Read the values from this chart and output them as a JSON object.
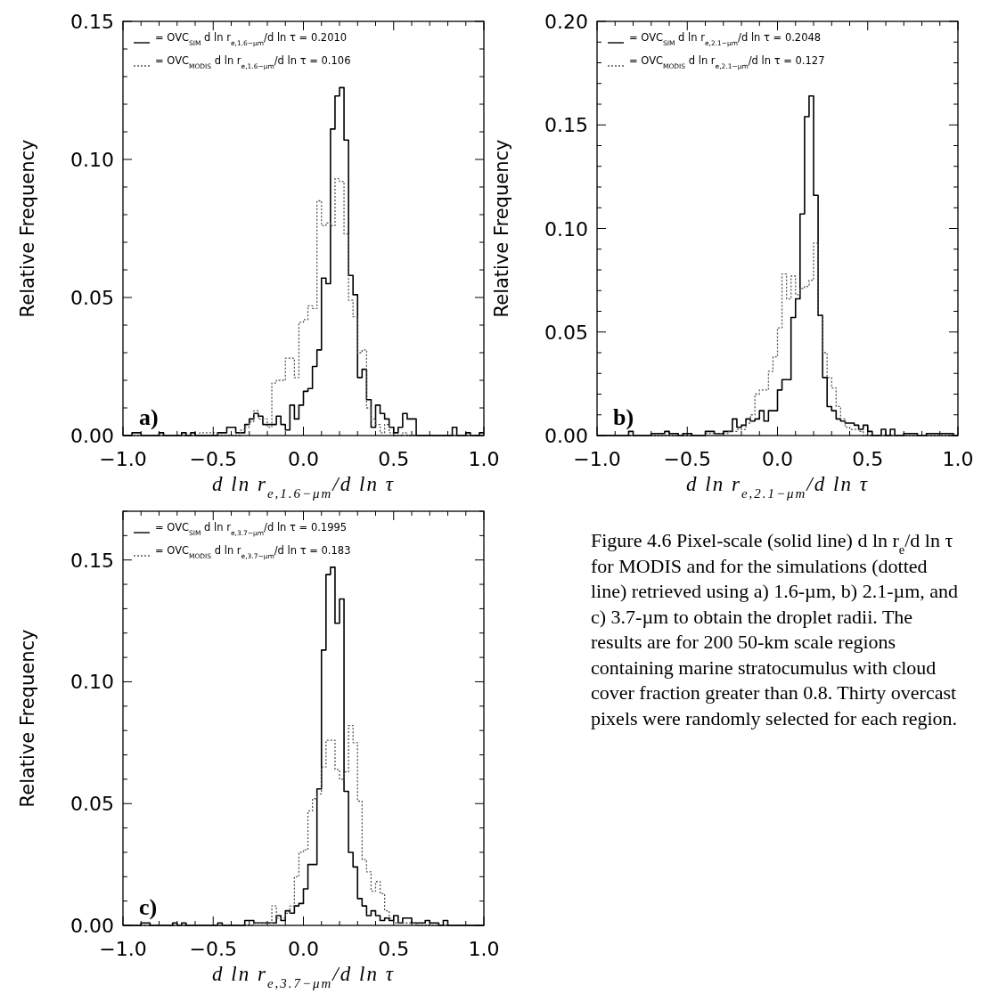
{
  "chart_data": [
    {
      "type": "histogram",
      "xlabel": "d ln r$_{e,1.6−μm}$/d ln τ",
      "ylabel": "Relative Frequency",
      "legend": "top left",
      "annotations": [
        "a)"
      ],
      "bins": [
        -1,
        -0.975,
        -0.95,
        -0.925,
        -0.9,
        -0.875,
        -0.85,
        -0.825,
        -0.8,
        -0.775,
        -0.75,
        -0.725,
        -0.7,
        -0.675,
        -0.65,
        -0.625,
        -0.6,
        -0.575,
        -0.55,
        -0.525,
        -0.5,
        -0.475,
        -0.45,
        -0.425,
        -0.4,
        -0.375,
        -0.35,
        -0.325,
        -0.3,
        -0.275,
        -0.25,
        -0.225,
        -0.2,
        -0.175,
        -0.15,
        -0.125,
        -0.1,
        -0.075,
        -0.05,
        -0.025,
        0,
        0.025,
        0.05,
        0.075,
        0.1,
        0.125,
        0.15,
        0.175,
        0.2,
        0.225,
        0.25,
        0.275,
        0.3,
        0.325,
        0.35,
        0.375,
        0.4,
        0.425,
        0.45,
        0.475,
        0.5,
        0.525,
        0.55,
        0.575,
        0.6,
        0.625,
        0.65,
        0.675,
        0.7,
        0.725,
        0.75,
        0.775,
        0.8,
        0.825,
        0.85,
        0.875,
        0.9,
        0.925,
        0.95,
        0.975,
        1
      ],
      "xlim": [
        -1,
        1
      ],
      "ylim": [
        0,
        0.15
      ],
      "xticks": [
        {
          "value": -1,
          "label": "−1.0"
        },
        {
          "value": -0.9,
          "label": null
        },
        {
          "value": -0.8,
          "label": null
        },
        {
          "value": -0.7,
          "label": null
        },
        {
          "value": -0.6,
          "label": null
        },
        {
          "value": -0.5,
          "label": "−0.5"
        },
        {
          "value": -0.4,
          "label": null
        },
        {
          "value": -0.3,
          "label": null
        },
        {
          "value": -0.2,
          "label": null
        },
        {
          "value": -0.1,
          "label": null
        },
        {
          "value": 0,
          "label": "0.0"
        },
        {
          "value": 0.1,
          "label": null
        },
        {
          "value": 0.2,
          "label": null
        },
        {
          "value": 0.3,
          "label": null
        },
        {
          "value": 0.4,
          "label": null
        },
        {
          "value": 0.5,
          "label": "0.5"
        },
        {
          "value": 0.6,
          "label": null
        },
        {
          "value": 0.7,
          "label": null
        },
        {
          "value": 0.8,
          "label": null
        },
        {
          "value": 0.9,
          "label": null
        },
        {
          "value": 1,
          "label": "1.0"
        }
      ],
      "yticks": [
        {
          "value": 0,
          "label": "0.00"
        },
        {
          "value": 0.01,
          "label": null
        },
        {
          "value": 0.02,
          "label": null
        },
        {
          "value": 0.03,
          "label": null
        },
        {
          "value": 0.04,
          "label": null
        },
        {
          "value": 0.05,
          "label": "0.05"
        },
        {
          "value": 0.06,
          "label": null
        },
        {
          "value": 0.07,
          "label": null
        },
        {
          "value": 0.08,
          "label": null
        },
        {
          "value": 0.09,
          "label": null
        },
        {
          "value": 0.1,
          "label": "0.10"
        },
        {
          "value": 0.11,
          "label": null
        },
        {
          "value": 0.12,
          "label": null
        },
        {
          "value": 0.13,
          "label": null
        },
        {
          "value": 0.14,
          "label": null
        },
        {
          "value": 0.15,
          "label": "0.15"
        }
      ],
      "series": [
        {
          "name": "= OVC$_{SIM}$ d ln r$_{e,1.6−μm}$/d ln τ = 0.2010",
          "color": "#000000",
          "line_style": "solid",
          "values": [
            0,
            0,
            0.001,
            0.001,
            0,
            0,
            0,
            0,
            0.001,
            0,
            0,
            0,
            0,
            0.001,
            0,
            0.001,
            0,
            0,
            0,
            0,
            0,
            0.001,
            0.001,
            0.003,
            0.003,
            0.001,
            0.001,
            0.004,
            0.006,
            0.008,
            0.007,
            0.004,
            0.004,
            0.004,
            0.007,
            0.004,
            0.002,
            0.011,
            0.006,
            0.011,
            0.016,
            0.017,
            0.025,
            0.031,
            0.057,
            0.055,
            0.111,
            0.123,
            0.126,
            0.107,
            0.058,
            0.051,
            0.021,
            0.024,
            0.013,
            0.003,
            0.011,
            0.008,
            0.006,
            0.003,
            0.001,
            0.003,
            0.008,
            0.006,
            0.006,
            0,
            0,
            0,
            0,
            0,
            0,
            0,
            0,
            0.003,
            0,
            0,
            0.001,
            0,
            0,
            0.001
          ]
        },
        {
          "name": "= OVC$_{MODIS}$ d ln r$_{e,1.6−μm}$/d ln τ = 0.106",
          "color": "#555555",
          "line_style": "dotted",
          "values": [
            0,
            0,
            0,
            0,
            0,
            0,
            0,
            0,
            0,
            0,
            0,
            0,
            0,
            0,
            0,
            0,
            0,
            0.001,
            0.001,
            0.001,
            0.001,
            0,
            0,
            0,
            0,
            0,
            0.002,
            0.003,
            0.005,
            0.009,
            0.006,
            0.006,
            0.003,
            0.019,
            0.02,
            0.02,
            0.028,
            0.028,
            0.021,
            0.041,
            0.042,
            0.047,
            0.046,
            0.085,
            0.076,
            0.077,
            0.076,
            0.093,
            0.092,
            0.073,
            0.049,
            0.043,
            0.03,
            0.031,
            0.01,
            0.006,
            0.004,
            0.001,
            0.004,
            0.001,
            0,
            0,
            0.001,
            0,
            0,
            0,
            0,
            0,
            0,
            0,
            0,
            0,
            0,
            0,
            0,
            0,
            0,
            0,
            0,
            0
          ]
        }
      ]
    },
    {
      "type": "histogram",
      "xlabel": "d ln r$_{e,2.1−μm}$/d ln τ",
      "ylabel": "Relative Frequency",
      "legend": "top left",
      "annotations": [
        "b)"
      ],
      "bins": [
        -1,
        -0.975,
        -0.95,
        -0.925,
        -0.9,
        -0.875,
        -0.85,
        -0.825,
        -0.8,
        -0.775,
        -0.75,
        -0.725,
        -0.7,
        -0.675,
        -0.65,
        -0.625,
        -0.6,
        -0.575,
        -0.55,
        -0.525,
        -0.5,
        -0.475,
        -0.45,
        -0.425,
        -0.4,
        -0.375,
        -0.35,
        -0.325,
        -0.3,
        -0.275,
        -0.25,
        -0.225,
        -0.2,
        -0.175,
        -0.15,
        -0.125,
        -0.1,
        -0.075,
        -0.05,
        -0.025,
        0,
        0.025,
        0.05,
        0.075,
        0.1,
        0.125,
        0.15,
        0.175,
        0.2,
        0.225,
        0.25,
        0.275,
        0.3,
        0.325,
        0.35,
        0.375,
        0.4,
        0.425,
        0.45,
        0.475,
        0.5,
        0.525,
        0.55,
        0.575,
        0.6,
        0.625,
        0.65,
        0.675,
        0.7,
        0.725,
        0.75,
        0.775,
        0.8,
        0.825,
        0.85,
        0.875,
        0.9,
        0.925,
        0.95,
        0.975,
        1
      ],
      "xlim": [
        -1,
        1
      ],
      "ylim": [
        0,
        0.2
      ],
      "xticks": [
        {
          "value": -1,
          "label": "−1.0"
        },
        {
          "value": -0.9,
          "label": null
        },
        {
          "value": -0.8,
          "label": null
        },
        {
          "value": -0.7,
          "label": null
        },
        {
          "value": -0.6,
          "label": null
        },
        {
          "value": -0.5,
          "label": "−0.5"
        },
        {
          "value": -0.4,
          "label": null
        },
        {
          "value": -0.3,
          "label": null
        },
        {
          "value": -0.2,
          "label": null
        },
        {
          "value": -0.1,
          "label": null
        },
        {
          "value": 0,
          "label": "0.0"
        },
        {
          "value": 0.1,
          "label": null
        },
        {
          "value": 0.2,
          "label": null
        },
        {
          "value": 0.3,
          "label": null
        },
        {
          "value": 0.4,
          "label": null
        },
        {
          "value": 0.5,
          "label": "0.5"
        },
        {
          "value": 0.6,
          "label": null
        },
        {
          "value": 0.7,
          "label": null
        },
        {
          "value": 0.8,
          "label": null
        },
        {
          "value": 0.9,
          "label": null
        },
        {
          "value": 1,
          "label": "1.0"
        }
      ],
      "yticks": [
        {
          "value": 0,
          "label": "0.00"
        },
        {
          "value": 0.01,
          "label": null
        },
        {
          "value": 0.02,
          "label": null
        },
        {
          "value": 0.03,
          "label": null
        },
        {
          "value": 0.04,
          "label": null
        },
        {
          "value": 0.05,
          "label": "0.05"
        },
        {
          "value": 0.06,
          "label": null
        },
        {
          "value": 0.07,
          "label": null
        },
        {
          "value": 0.08,
          "label": null
        },
        {
          "value": 0.09,
          "label": null
        },
        {
          "value": 0.1,
          "label": "0.10"
        },
        {
          "value": 0.11,
          "label": null
        },
        {
          "value": 0.12,
          "label": null
        },
        {
          "value": 0.13,
          "label": null
        },
        {
          "value": 0.14,
          "label": null
        },
        {
          "value": 0.15,
          "label": "0.15"
        },
        {
          "value": 0.16,
          "label": null
        },
        {
          "value": 0.17,
          "label": null
        },
        {
          "value": 0.18,
          "label": null
        },
        {
          "value": 0.19,
          "label": null
        },
        {
          "value": 0.2,
          "label": "0.20"
        }
      ],
      "series": [
        {
          "name": "= OVC$_{SIM}$ d ln r$_{e,2.1−μm}$/d ln τ = 0.2048",
          "color": "#000000",
          "line_style": "solid",
          "values": [
            0,
            0,
            0,
            0,
            0,
            0,
            0,
            0.002,
            0,
            0,
            0,
            0,
            0.001,
            0.001,
            0.001,
            0.002,
            0.001,
            0.001,
            0,
            0.001,
            0.001,
            0,
            0,
            0,
            0.002,
            0.002,
            0.001,
            0.001,
            0.002,
            0.002,
            0.008,
            0.004,
            0.005,
            0.008,
            0.007,
            0.008,
            0.012,
            0.007,
            0.012,
            0.012,
            0.022,
            0.027,
            0.027,
            0.057,
            0.066,
            0.107,
            0.154,
            0.164,
            0.116,
            0.058,
            0.028,
            0.014,
            0.012,
            0.008,
            0.007,
            0.006,
            0.006,
            0.005,
            0.003,
            0.005,
            0.002,
            0,
            0,
            0.003,
            0,
            0.003,
            0,
            0,
            0.001,
            0.001,
            0.001,
            0,
            0,
            0.001,
            0.001,
            0.001,
            0.001,
            0.001,
            0.001,
            0
          ]
        },
        {
          "name": "= OVC$_{MODIS}$ d ln r$_{e,2.1−μm}$/d ln τ = 0.127",
          "color": "#555555",
          "line_style": "dotted",
          "values": [
            0,
            0,
            0,
            0,
            0,
            0,
            0,
            0,
            0,
            0,
            0,
            0,
            0,
            0,
            0,
            0,
            0,
            0,
            0,
            0,
            0,
            0,
            0,
            0,
            0.001,
            0.001,
            0.001,
            0.001,
            0.001,
            0.002,
            0.002,
            0.003,
            0.003,
            0.006,
            0.01,
            0.02,
            0.022,
            0.022,
            0.031,
            0.038,
            0.052,
            0.078,
            0.066,
            0.077,
            0.068,
            0.071,
            0.072,
            0.075,
            0.093,
            0.058,
            0.04,
            0.028,
            0.023,
            0.014,
            0.008,
            0.004,
            0.003,
            0.003,
            0.002,
            0,
            0,
            0,
            0,
            0,
            0,
            0,
            0,
            0,
            0,
            0,
            0,
            0,
            0,
            0,
            0,
            0,
            0,
            0,
            0,
            0
          ]
        }
      ]
    },
    {
      "type": "histogram",
      "xlabel": "d ln r$_{e,3.7−μm}$/d ln τ",
      "ylabel": "Relative Frequency",
      "legend": "top left",
      "annotations": [
        "c)",
        "Figure 4.6  Pixel-scale (solid line) d ln r$_{e}$/d ln τ for MODIS and for the simulations (dotted line) retrieved using a) 1.6-µm, b) 2.1-µm, and c) 3.7-µm to obtain the droplet radii.  The results are for 200 50-km scale regions containing marine stratocumulus with cloud cover fraction greater than 0.8.  Thirty overcast pixels were randomly selected for each region."
      ],
      "bins": [
        -1,
        -0.975,
        -0.95,
        -0.925,
        -0.9,
        -0.875,
        -0.85,
        -0.825,
        -0.8,
        -0.775,
        -0.75,
        -0.725,
        -0.7,
        -0.675,
        -0.65,
        -0.625,
        -0.6,
        -0.575,
        -0.55,
        -0.525,
        -0.5,
        -0.475,
        -0.45,
        -0.425,
        -0.4,
        -0.375,
        -0.35,
        -0.325,
        -0.3,
        -0.275,
        -0.25,
        -0.225,
        -0.2,
        -0.175,
        -0.15,
        -0.125,
        -0.1,
        -0.075,
        -0.05,
        -0.025,
        0,
        0.025,
        0.05,
        0.075,
        0.1,
        0.125,
        0.15,
        0.175,
        0.2,
        0.225,
        0.25,
        0.275,
        0.3,
        0.325,
        0.35,
        0.375,
        0.4,
        0.425,
        0.45,
        0.475,
        0.5,
        0.525,
        0.55,
        0.575,
        0.6,
        0.625,
        0.65,
        0.675,
        0.7,
        0.725,
        0.75,
        0.775,
        0.8,
        0.825,
        0.85,
        0.875,
        0.9,
        0.925,
        0.95,
        0.975,
        1
      ],
      "xlim": [
        -1,
        1
      ],
      "ylim": [
        0,
        0.17
      ],
      "xticks": [
        {
          "value": -1,
          "label": "−1.0"
        },
        {
          "value": -0.9,
          "label": null
        },
        {
          "value": -0.8,
          "label": null
        },
        {
          "value": -0.7,
          "label": null
        },
        {
          "value": -0.6,
          "label": null
        },
        {
          "value": -0.5,
          "label": "−0.5"
        },
        {
          "value": -0.4,
          "label": null
        },
        {
          "value": -0.3,
          "label": null
        },
        {
          "value": -0.2,
          "label": null
        },
        {
          "value": -0.1,
          "label": null
        },
        {
          "value": 0,
          "label": "0.0"
        },
        {
          "value": 0.1,
          "label": null
        },
        {
          "value": 0.2,
          "label": null
        },
        {
          "value": 0.3,
          "label": null
        },
        {
          "value": 0.4,
          "label": null
        },
        {
          "value": 0.5,
          "label": "0.5"
        },
        {
          "value": 0.6,
          "label": null
        },
        {
          "value": 0.7,
          "label": null
        },
        {
          "value": 0.8,
          "label": null
        },
        {
          "value": 0.9,
          "label": null
        },
        {
          "value": 1,
          "label": "1.0"
        }
      ],
      "yticks": [
        {
          "value": 0,
          "label": "0.00"
        },
        {
          "value": 0.01,
          "label": null
        },
        {
          "value": 0.02,
          "label": null
        },
        {
          "value": 0.03,
          "label": null
        },
        {
          "value": 0.04,
          "label": null
        },
        {
          "value": 0.05,
          "label": "0.05"
        },
        {
          "value": 0.06,
          "label": null
        },
        {
          "value": 0.07,
          "label": null
        },
        {
          "value": 0.08,
          "label": null
        },
        {
          "value": 0.09,
          "label": null
        },
        {
          "value": 0.1,
          "label": "0.10"
        },
        {
          "value": 0.11,
          "label": null
        },
        {
          "value": 0.12,
          "label": null
        },
        {
          "value": 0.13,
          "label": null
        },
        {
          "value": 0.14,
          "label": null
        },
        {
          "value": 0.15,
          "label": "0.15"
        },
        {
          "value": 0.16,
          "label": null
        },
        {
          "value": 0.17,
          "label": null
        }
      ],
      "series": [
        {
          "name": "= OVC$_{SIM}$ d ln r$_{e,3.7−μm}$/d ln τ = 0.1995",
          "color": "#000000",
          "line_style": "solid",
          "values": [
            0,
            0,
            0,
            0,
            0.001,
            0.001,
            0,
            0,
            0,
            0,
            0,
            0.001,
            0,
            0.001,
            0,
            0,
            0,
            0,
            0,
            0,
            0,
            0.001,
            0,
            0,
            0,
            0,
            0,
            0.002,
            0.002,
            0.001,
            0.001,
            0.001,
            0.001,
            0.001,
            0.004,
            0.002,
            0.006,
            0.005,
            0.008,
            0.009,
            0.015,
            0.025,
            0.025,
            0.056,
            0.113,
            0.144,
            0.147,
            0.124,
            0.134,
            0.055,
            0.03,
            0.024,
            0.011,
            0.008,
            0.004,
            0.006,
            0.004,
            0.002,
            0.003,
            0.002,
            0.004,
            0.001,
            0.003,
            0.003,
            0.001,
            0.001,
            0.001,
            0.002,
            0.001,
            0.001,
            0,
            0.002,
            0,
            0,
            0,
            0,
            0,
            0,
            0,
            0
          ]
        },
        {
          "name": "= OVC$_{MODIS}$ d ln r$_{e,3.7−μm}$/d ln τ = 0.183",
          "color": "#555555",
          "line_style": "dotted",
          "values": [
            0,
            0,
            0,
            0,
            0,
            0,
            0,
            0,
            0,
            0,
            0,
            0,
            0,
            0,
            0,
            0,
            0,
            0,
            0,
            0,
            0,
            0,
            0,
            0,
            0,
            0,
            0,
            0,
            0,
            0.001,
            0.001,
            0.001,
            0.001,
            0.008,
            0.003,
            0.003,
            0.005,
            0.008,
            0.02,
            0.03,
            0.031,
            0.047,
            0.052,
            0.054,
            0.065,
            0.076,
            0.076,
            0.064,
            0.06,
            0.063,
            0.082,
            0.075,
            0.051,
            0.027,
            0.022,
            0.014,
            0.018,
            0.013,
            0.006,
            0.003,
            0.001,
            0.001,
            0.001,
            0.001,
            0.001,
            0,
            0,
            0,
            0,
            0,
            0,
            0,
            0,
            0,
            0,
            0,
            0,
            0,
            0,
            0
          ]
        }
      ]
    }
  ]
}
